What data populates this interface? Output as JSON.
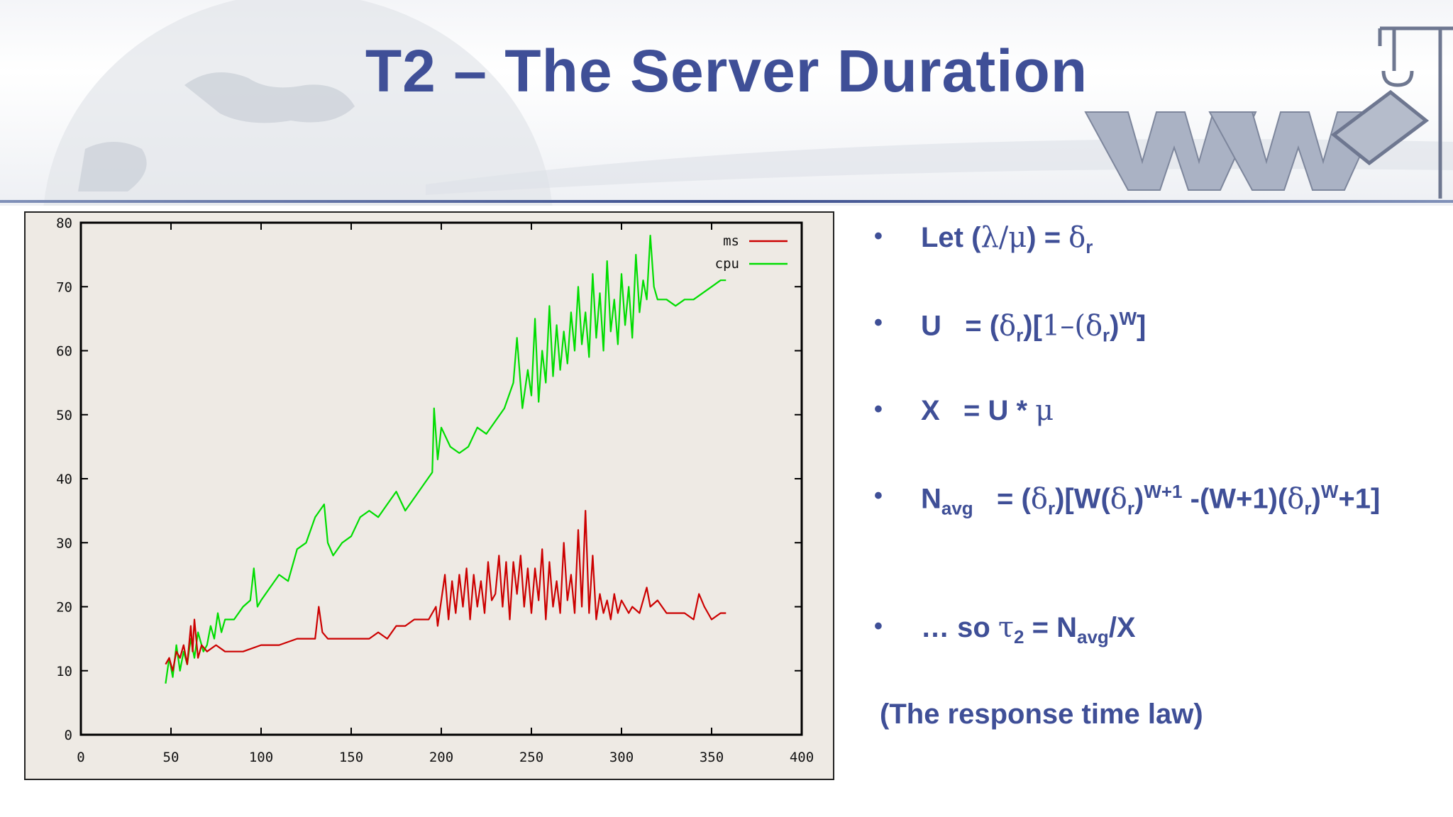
{
  "title": "T2 – The Server Duration",
  "bullets": {
    "b1": {
      "pre": "Let (",
      "g1": "λ/μ",
      "mid": ") = ",
      "g2": "δ",
      "sub": "r"
    },
    "b2": {
      "lhs": "U   = (",
      "g1": "δ",
      "sub1": "r",
      "mid1": ")[",
      "one": "1–(",
      "g2": "δ",
      "sub2": "r",
      "mid2": ")",
      "sup": "W",
      "end": "]"
    },
    "b3": {
      "lhs": "X   = U * ",
      "g1": "μ"
    },
    "b4": {
      "n": "N",
      "nsub": "avg",
      "mid0": "   = (",
      "g1": "δ",
      "sub1": "r",
      "mid1": ")[W(",
      "g2": "δ",
      "sub2": "r",
      "mid2": ")",
      "sup1": "W+1",
      "mid3": " -(W+1)(",
      "g3": "δ",
      "sub3": "r",
      "mid4": ")",
      "sup2": "W",
      "end": "+1]"
    },
    "b5": {
      "pre": "… so ",
      "g1": "τ",
      "tsub": "2",
      "mid": " = N",
      "nsub": "avg",
      "end": "/X"
    }
  },
  "footnote": "(The response time law)",
  "colors": {
    "title": "#3f4f97",
    "ms": "#cc0000",
    "cpu": "#00dd00",
    "plot_bg": "#eeeae4"
  },
  "chart_data": {
    "type": "line",
    "xlim": [
      0,
      400
    ],
    "ylim": [
      0,
      80
    ],
    "x_ticks": [
      0,
      50,
      100,
      150,
      200,
      250,
      300,
      350,
      400
    ],
    "y_ticks": [
      0,
      10,
      20,
      30,
      40,
      50,
      60,
      70,
      80
    ],
    "legend": "top-right",
    "series": [
      {
        "name": "ms",
        "color": "#cc0000",
        "x": [
          47,
          49,
          51,
          53,
          55,
          57,
          59,
          61,
          62,
          63,
          65,
          67,
          70,
          75,
          80,
          90,
          100,
          110,
          120,
          130,
          132,
          134,
          137,
          140,
          150,
          160,
          165,
          170,
          175,
          180,
          185,
          190,
          193,
          195,
          197,
          198,
          200,
          202,
          204,
          206,
          208,
          210,
          212,
          214,
          216,
          218,
          220,
          222,
          224,
          226,
          228,
          230,
          232,
          234,
          236,
          238,
          240,
          242,
          244,
          246,
          248,
          250,
          252,
          254,
          256,
          258,
          260,
          262,
          264,
          266,
          268,
          270,
          272,
          274,
          276,
          278,
          280,
          282,
          284,
          286,
          288,
          290,
          292,
          294,
          296,
          298,
          300,
          302,
          304,
          306,
          310,
          314,
          316,
          320,
          325,
          330,
          335,
          340,
          343,
          346,
          350,
          355,
          358
        ],
        "y": [
          11,
          12,
          10,
          13,
          12,
          14,
          11,
          17,
          13,
          18,
          12,
          14,
          13,
          14,
          13,
          13,
          14,
          14,
          15,
          15,
          20,
          16,
          15,
          15,
          15,
          15,
          16,
          15,
          17,
          17,
          18,
          18,
          18,
          19,
          20,
          17,
          21,
          25,
          18,
          24,
          19,
          25,
          20,
          26,
          18,
          25,
          20,
          24,
          19,
          27,
          21,
          22,
          28,
          20,
          27,
          18,
          27,
          22,
          28,
          20,
          26,
          19,
          26,
          21,
          29,
          18,
          27,
          20,
          24,
          19,
          30,
          21,
          25,
          19,
          32,
          20,
          35,
          19,
          28,
          18,
          22,
          19,
          21,
          18,
          22,
          19,
          21,
          20,
          19,
          20,
          19,
          23,
          20,
          21,
          19,
          19,
          19,
          18,
          22,
          20,
          18,
          19,
          19
        ]
      },
      {
        "name": "cpu",
        "color": "#00dd00",
        "x": [
          47,
          49,
          51,
          53,
          55,
          57,
          59,
          61,
          63,
          65,
          68,
          70,
          72,
          74,
          76,
          78,
          80,
          85,
          90,
          94,
          96,
          98,
          100,
          105,
          110,
          115,
          120,
          125,
          130,
          135,
          137,
          140,
          145,
          150,
          155,
          160,
          165,
          170,
          175,
          180,
          185,
          190,
          195,
          196,
          198,
          200,
          205,
          210,
          215,
          220,
          225,
          230,
          235,
          240,
          242,
          245,
          248,
          250,
          252,
          254,
          256,
          258,
          260,
          262,
          264,
          266,
          268,
          270,
          272,
          274,
          276,
          278,
          280,
          282,
          284,
          286,
          288,
          290,
          292,
          294,
          296,
          298,
          300,
          302,
          304,
          306,
          308,
          310,
          312,
          314,
          316,
          318,
          320,
          325,
          330,
          335,
          340,
          345,
          350,
          355,
          358
        ],
        "y": [
          8,
          12,
          9,
          14,
          10,
          13,
          11,
          15,
          12,
          16,
          13,
          14,
          17,
          15,
          19,
          16,
          18,
          18,
          20,
          21,
          26,
          20,
          21,
          23,
          25,
          24,
          29,
          30,
          34,
          36,
          30,
          28,
          30,
          31,
          34,
          35,
          34,
          36,
          38,
          35,
          37,
          39,
          41,
          51,
          43,
          48,
          45,
          44,
          45,
          48,
          47,
          49,
          51,
          55,
          62,
          51,
          57,
          53,
          65,
          52,
          60,
          55,
          67,
          56,
          64,
          57,
          63,
          58,
          66,
          60,
          70,
          61,
          66,
          59,
          72,
          62,
          69,
          60,
          74,
          63,
          68,
          61,
          72,
          64,
          70,
          62,
          75,
          66,
          71,
          68,
          78,
          70,
          68,
          68,
          67,
          68,
          68,
          69,
          70,
          71,
          71
        ]
      }
    ]
  }
}
